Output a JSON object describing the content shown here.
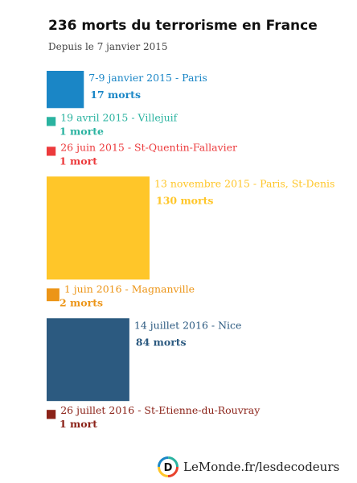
{
  "header": {
    "title": "236 morts du terrorisme en France",
    "subtitle": "Depuis le 7 janvier 2015"
  },
  "chart_data": {
    "type": "proportional-squares",
    "encoding": "square area proportional to deaths",
    "items": [
      {
        "date": "7-9 janvier 2015",
        "place": "Paris",
        "label": "7-9 janvier 2015 - Paris",
        "value": 17,
        "value_label": "17 morts",
        "color": "#1a86c6"
      },
      {
        "date": "19 avril 2015",
        "place": "Villejuif",
        "label": "19 avril 2015 - Villejuif",
        "value": 1,
        "value_label": "1 morte",
        "color": "#2ab3a0"
      },
      {
        "date": "26 juin 2015",
        "place": "St-Quentin-Fallavier",
        "label": "26 juin 2015 - St-Quentin-Fallavier",
        "value": 1,
        "value_label": "1 mort",
        "color": "#ec3a3c"
      },
      {
        "date": "13 novembre 2015",
        "place": "Paris, St-Denis",
        "label": "13 novembre 2015 - Paris, St-Denis",
        "value": 130,
        "value_label": "130 morts",
        "color": "#ffc629"
      },
      {
        "date": "1 juin 2016",
        "place": "Magnanville",
        "label": "1 juin 2016 - Magnanville",
        "value": 2,
        "value_label": "2 morts",
        "color": "#ec9517"
      },
      {
        "date": "14 juillet 2016",
        "place": "Nice",
        "label": "14 juillet 2016 - Nice",
        "value": 84,
        "value_label": "84 morts",
        "color": "#2c5a80"
      },
      {
        "date": "26 juillet 2016",
        "place": "St-Etienne-du-Rouvray",
        "label": "26 juillet 2016 - St-Etienne-du-Rouvray",
        "value": 1,
        "value_label": "1 mort",
        "color": "#8b2218"
      }
    ]
  },
  "footer": {
    "logo_letter": "D",
    "text": "LeMonde.fr/lesdecodeurs"
  },
  "icons": {
    "logo": "les-decodeurs-logo-icon"
  }
}
